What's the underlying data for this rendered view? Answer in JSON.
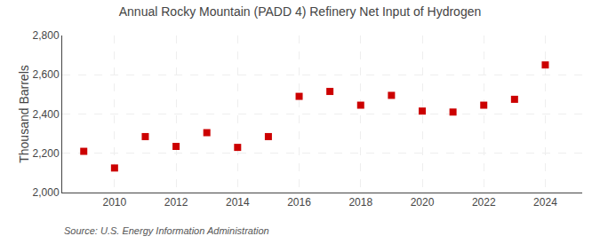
{
  "chart_data": {
    "type": "scatter",
    "title": "Annual Rocky Mountain (PADD 4) Refinery Net Input of Hydrogen",
    "ylabel": "Thousand Barrels",
    "annotations": [
      "Source: U.S. Energy Information Administration"
    ],
    "x": [
      2009,
      2010,
      2011,
      2012,
      2013,
      2014,
      2015,
      2016,
      2017,
      2018,
      2019,
      2020,
      2021,
      2022,
      2023,
      2024
    ],
    "values": [
      2210,
      2125,
      2285,
      2235,
      2305,
      2230,
      2285,
      2490,
      2515,
      2445,
      2495,
      2415,
      2410,
      2445,
      2475,
      2650
    ],
    "color": "#cc0000",
    "marker": "square",
    "xlim": [
      2008.3,
      2025.2
    ],
    "xticks": [
      2010,
      2012,
      2014,
      2016,
      2018,
      2020,
      2022,
      2024
    ],
    "ylim": [
      2000,
      2800
    ],
    "yticks": [
      {
        "value": 2000,
        "label": "2,000"
      },
      {
        "value": 2200,
        "label": "2,200"
      },
      {
        "value": 2400,
        "label": "2,400"
      },
      {
        "value": 2600,
        "label": "2,600"
      },
      {
        "value": 2800,
        "label": "2,800"
      }
    ],
    "grid": true
  }
}
